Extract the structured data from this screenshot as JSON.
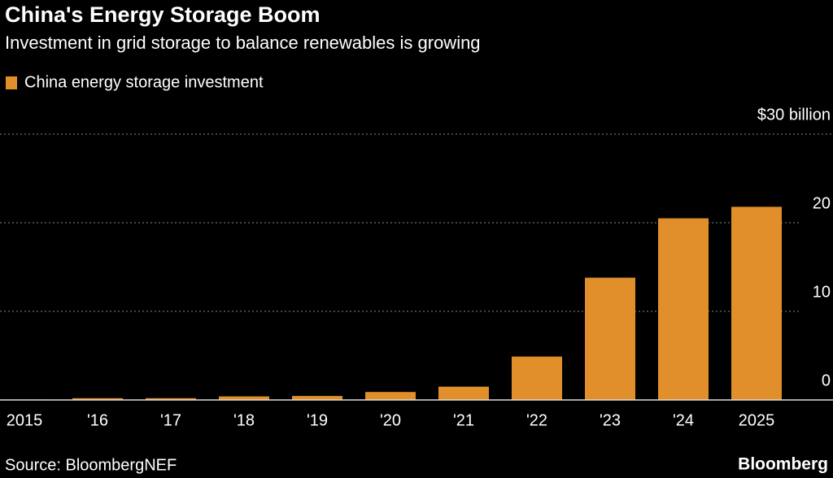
{
  "chart_data": {
    "type": "bar",
    "title": "China's Energy Storage Boom",
    "subtitle": "Investment in grid storage to balance renewables is growing",
    "categories": [
      "2015",
      "'16",
      "'17",
      "'18",
      "'19",
      "'20",
      "'21",
      "'22",
      "'23",
      "'24",
      "2025"
    ],
    "series": [
      {
        "name": "China energy storage investment",
        "color": "#e08f2a",
        "values": [
          0.05,
          0.2,
          0.2,
          0.4,
          0.45,
          0.9,
          1.5,
          4.9,
          13.8,
          20.5,
          21.8
        ]
      }
    ],
    "ylim": [
      0,
      30
    ],
    "yticks": [
      0,
      10,
      20,
      {
        "value": 30,
        "label": "$30 billion"
      }
    ],
    "grid": true,
    "source": "Source: BloombergNEF",
    "logo": "Bloomberg"
  }
}
